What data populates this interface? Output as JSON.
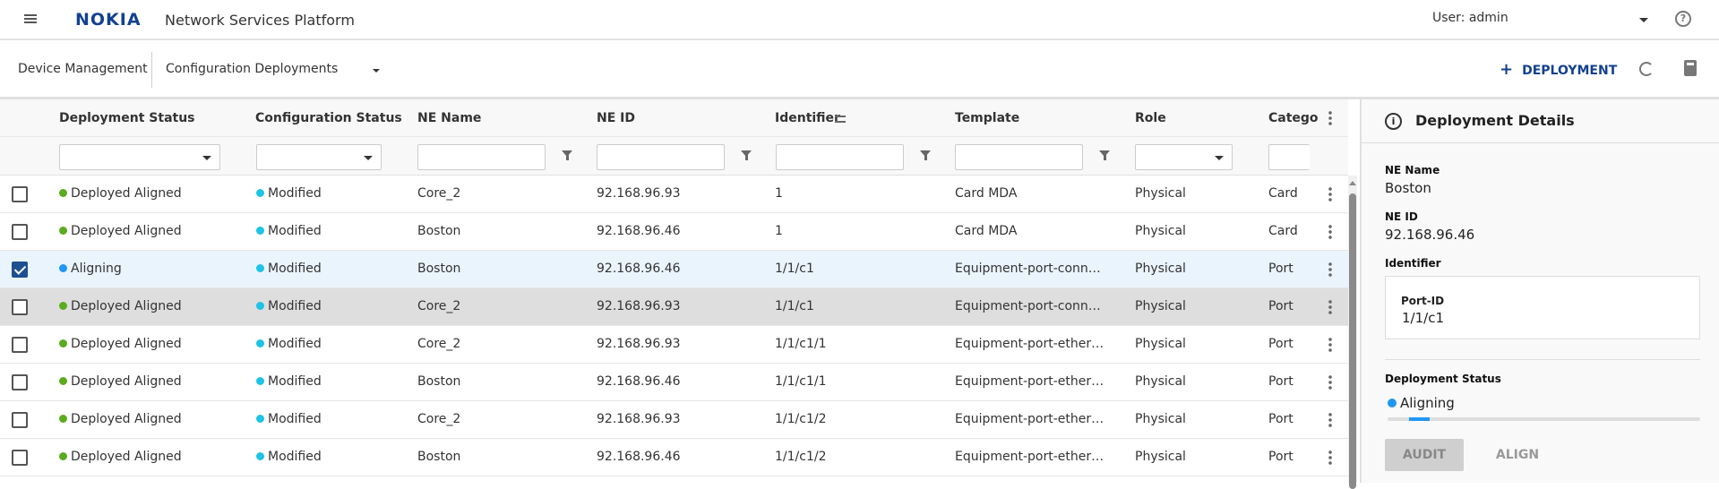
{
  "app": {
    "title": "Network Services Platform",
    "brand": "NOKIA",
    "user": "User: admin",
    "brand_color": "#124191"
  },
  "subheader": {
    "breadcrumb": "Device Management",
    "view": "Configuration Deployments",
    "add_label": "DEPLOYMENT"
  },
  "columns": [
    "Deployment Status",
    "Configuration Status",
    "NE Name",
    "NE ID",
    "Identifier",
    "Template",
    "Role",
    "Catego"
  ],
  "status_colors": {
    "Deployed Aligned": "#5bab1f",
    "Aligning": "#2196f3",
    "Modified": "#1ec3e6"
  },
  "rows": [
    {
      "checked": false,
      "deployment_status": "Deployed Aligned",
      "config_status": "Modified",
      "ne_name": "Core_2",
      "ne_id": "92.168.96.93",
      "identifier": "1",
      "template": "Card MDA",
      "role": "Physical",
      "category": "Card"
    },
    {
      "checked": false,
      "deployment_status": "Deployed Aligned",
      "config_status": "Modified",
      "ne_name": "Boston",
      "ne_id": "92.168.96.46",
      "identifier": "1",
      "template": "Card MDA",
      "role": "Physical",
      "category": "Card"
    },
    {
      "checked": true,
      "deployment_status": "Aligning",
      "config_status": "Modified",
      "ne_name": "Boston",
      "ne_id": "92.168.96.46",
      "identifier": "1/1/c1",
      "template": "Equipment-port-conn…",
      "role": "Physical",
      "category": "Port"
    },
    {
      "checked": false,
      "deployment_status": "Deployed Aligned",
      "config_status": "Modified",
      "ne_name": "Core_2",
      "ne_id": "92.168.96.93",
      "identifier": "1/1/c1",
      "template": "Equipment-port-conn…",
      "role": "Physical",
      "category": "Port"
    },
    {
      "checked": false,
      "deployment_status": "Deployed Aligned",
      "config_status": "Modified",
      "ne_name": "Core_2",
      "ne_id": "92.168.96.93",
      "identifier": "1/1/c1/1",
      "template": "Equipment-port-ether…",
      "role": "Physical",
      "category": "Port"
    },
    {
      "checked": false,
      "deployment_status": "Deployed Aligned",
      "config_status": "Modified",
      "ne_name": "Boston",
      "ne_id": "92.168.96.46",
      "identifier": "1/1/c1/1",
      "template": "Equipment-port-ether…",
      "role": "Physical",
      "category": "Port"
    },
    {
      "checked": false,
      "deployment_status": "Deployed Aligned",
      "config_status": "Modified",
      "ne_name": "Core_2",
      "ne_id": "92.168.96.93",
      "identifier": "1/1/c1/2",
      "template": "Equipment-port-ether…",
      "role": "Physical",
      "category": "Port"
    },
    {
      "checked": false,
      "deployment_status": "Deployed Aligned",
      "config_status": "Modified",
      "ne_name": "Boston",
      "ne_id": "92.168.96.46",
      "identifier": "1/1/c1/2",
      "template": "Equipment-port-ether…",
      "role": "Physical",
      "category": "Port"
    }
  ],
  "details": {
    "title": "Deployment Details",
    "ne_name_label": "NE Name",
    "ne_name": "Boston",
    "ne_id_label": "NE ID",
    "ne_id": "92.168.96.46",
    "identifier_label": "Identifier",
    "port_id_label": "Port-ID",
    "port_id": "1/1/c1",
    "status_label": "Deployment Status",
    "status": "Aligning",
    "audit_label": "AUDIT",
    "align_label": "ALIGN"
  }
}
